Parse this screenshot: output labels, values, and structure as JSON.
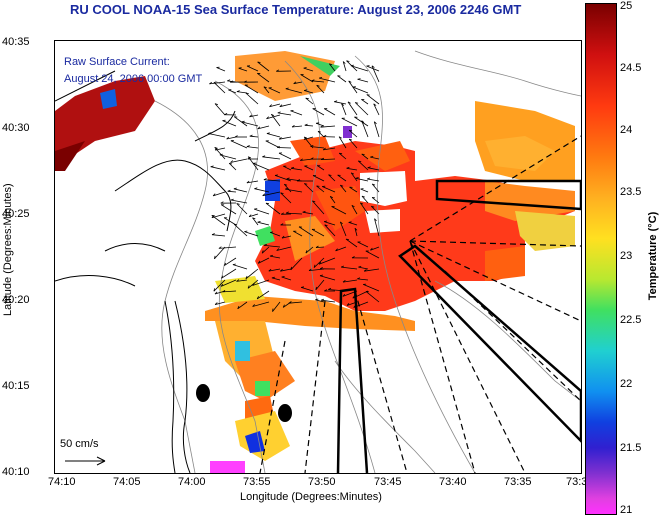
{
  "title": "RU COOL  NOAA-15  Sea Surface Temperature:  August 23, 2006 2246 GMT",
  "current_label": {
    "line1": "Raw Surface Current:",
    "line2": "August 24, 2006 00:00 GMT"
  },
  "scale_label": "50 cm/s",
  "axes": {
    "xlabel": "Longitude (Degrees:Minutes)",
    "ylabel": "Latitude (Degrees:Minutes)",
    "x_ticks": [
      "74:10",
      "74:05",
      "74:00",
      "73:55",
      "73:50",
      "73:45",
      "73:40",
      "73:35",
      "73:3"
    ],
    "y_ticks": [
      "40:35",
      "40:30",
      "40:25",
      "40:20",
      "40:15",
      "40:10"
    ]
  },
  "colorbar": {
    "label": "Temperature (°C)",
    "ticks": [
      "25",
      "24.5",
      "24",
      "23.5",
      "23",
      "22.5",
      "22",
      "21.5",
      "21"
    ],
    "range": [
      21,
      25
    ]
  },
  "colors": {
    "title": "#1a2aa0",
    "coastline": "#000000",
    "bathymetry": "#888888"
  }
}
